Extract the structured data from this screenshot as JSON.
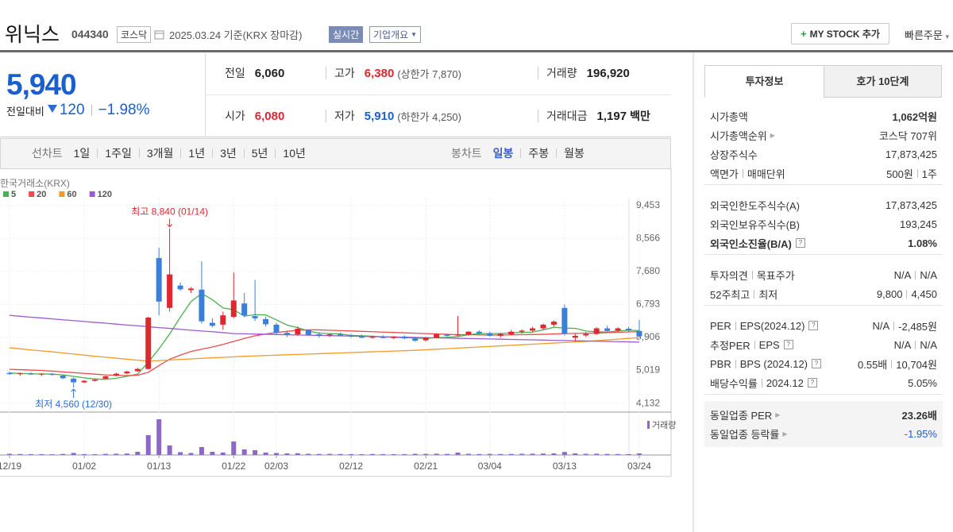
{
  "header": {
    "name": "위닉스",
    "code": "044340",
    "market": "코스닥",
    "date": "2025.03.24 기준(KRX 장마감)",
    "realtime": "실시간",
    "overview": "기업개요",
    "my_stock": "MY STOCK 추가",
    "quick_order": "빠른주문"
  },
  "quote": {
    "price": "5,940",
    "change_label": "전일대비",
    "change": "120",
    "rate": "−1.98%",
    "rows": [
      [
        {
          "label": "전일",
          "value": "6,060"
        },
        {
          "label": "고가",
          "value": "6,380",
          "sub": "(상한가 7,870)",
          "tone": "up"
        },
        {
          "label": "거래량",
          "value": "196,920"
        }
      ],
      [
        {
          "label": "시가",
          "value": "6,080",
          "tone": "up"
        },
        {
          "label": "저가",
          "value": "5,910",
          "sub": "(하한가 4,250)",
          "tone": "down"
        },
        {
          "label": "거래대금",
          "value": "1,197",
          "unit": "백만"
        }
      ]
    ]
  },
  "periods": {
    "line_label": "선차트",
    "line": [
      "1일",
      "1주일",
      "3개월",
      "1년",
      "3년",
      "5년",
      "10년"
    ],
    "candle_label": "봉차트",
    "candle": [
      "일봉",
      "주봉",
      "월봉"
    ],
    "selected": 0
  },
  "chart_data": {
    "type": "candlestick",
    "source": "한국거래소(KRX)",
    "up_color": "#e0262e",
    "down_color": "#3b7fd9",
    "categories": [
      "12/19",
      null,
      null,
      null,
      null,
      null,
      null,
      "01/02",
      null,
      null,
      null,
      null,
      null,
      null,
      "01/13",
      null,
      null,
      null,
      null,
      null,
      null,
      "01/22",
      null,
      null,
      null,
      "02/03",
      null,
      null,
      null,
      null,
      null,
      null,
      "02/12",
      null,
      null,
      null,
      null,
      null,
      null,
      "02/21",
      null,
      null,
      null,
      null,
      null,
      "03/04",
      null,
      null,
      null,
      null,
      null,
      null,
      "03/13",
      null,
      null,
      null,
      null,
      null,
      null,
      "03/24"
    ],
    "open": [
      4950,
      4920,
      4940,
      4910,
      4930,
      4880,
      4800,
      4700,
      4740,
      4800,
      4880,
      4940,
      5000,
      5060,
      8040,
      6700,
      7300,
      7180,
      7190,
      6300,
      6250,
      6460,
      6820,
      6480,
      6400,
      6250,
      6030,
      5990,
      6100,
      5990,
      5960,
      5990,
      5960,
      5930,
      5900,
      5920,
      5890,
      5930,
      5880,
      5830,
      5900,
      5980,
      5960,
      5990,
      6060,
      6020,
      5950,
      5990,
      6060,
      6090,
      6150,
      6250,
      6700,
      5900,
      5960,
      6000,
      6150,
      6090,
      6140,
      6080
    ],
    "high": [
      4990,
      4960,
      4970,
      4950,
      4950,
      4900,
      4830,
      4760,
      4790,
      4880,
      4960,
      5010,
      5090,
      6460,
      8320,
      8840,
      7380,
      7260,
      7950,
      6420,
      6600,
      7650,
      7100,
      7450,
      6460,
      6300,
      6090,
      6200,
      6120,
      6050,
      6010,
      6040,
      6000,
      5980,
      5950,
      5960,
      5940,
      5960,
      5920,
      5920,
      6020,
      6010,
      6480,
      6080,
      6100,
      6060,
      6030,
      6110,
      6120,
      6190,
      6280,
      6360,
      6790,
      6000,
      6050,
      6180,
      6220,
      6180,
      6190,
      6380
    ],
    "low": [
      4900,
      4880,
      4900,
      4870,
      4880,
      4790,
      4560,
      4680,
      4720,
      4780,
      4860,
      4920,
      4980,
      5040,
      6500,
      6600,
      7160,
      7100,
      6280,
      6180,
      6120,
      6420,
      6450,
      6350,
      6200,
      5980,
      5920,
      5950,
      5960,
      5900,
      5920,
      5940,
      5900,
      5880,
      5870,
      5880,
      5860,
      5860,
      5790,
      5800,
      5890,
      5930,
      5930,
      5950,
      5980,
      5930,
      5900,
      5960,
      6010,
      6060,
      6120,
      6200,
      5960,
      5800,
      5920,
      5980,
      6060,
      6050,
      6070,
      5910
    ],
    "close": [
      4920,
      4940,
      4910,
      4930,
      4900,
      4810,
      4700,
      4740,
      4770,
      4860,
      4930,
      4990,
      5060,
      6440,
      6870,
      7600,
      7200,
      7220,
      6340,
      6220,
      6500,
      6900,
      6500,
      6420,
      6260,
      6030,
      5980,
      6140,
      5980,
      5950,
      5990,
      5960,
      5930,
      5900,
      5920,
      5890,
      5930,
      5880,
      5820,
      5900,
      5990,
      5950,
      5990,
      6060,
      6020,
      5950,
      6000,
      6060,
      6090,
      6150,
      6250,
      6330,
      6000,
      5950,
      6000,
      6150,
      6080,
      6150,
      6100,
      5940
    ],
    "volume": [
      150000,
      120000,
      110000,
      100000,
      90000,
      130000,
      260000,
      110000,
      100000,
      140000,
      160000,
      180000,
      400000,
      2500000,
      4500000,
      1200000,
      350000,
      250000,
      1000000,
      400000,
      300000,
      1700000,
      700000,
      600000,
      300000,
      250000,
      200000,
      220000,
      150000,
      130000,
      140000,
      120000,
      110000,
      100000,
      120000,
      110000,
      100000,
      110000,
      150000,
      140000,
      160000,
      130000,
      300000,
      150000,
      120000,
      140000,
      120000,
      130000,
      150000,
      160000,
      180000,
      200000,
      380000,
      200000,
      150000,
      160000,
      130000,
      120000,
      110000,
      196920
    ],
    "volume_label": "거래량",
    "volume_color": "#8d68c8",
    "volume_lim": [
      0,
      5000000
    ],
    "series": [
      {
        "name": "5",
        "color": "#4caf50",
        "values": [
          4950,
          4940,
          4930,
          4925,
          4920,
          4900,
          4860,
          4820,
          4790,
          4780,
          4810,
          4860,
          4920,
          5240,
          5600,
          6000,
          6450,
          6870,
          7090,
          6920,
          6700,
          6650,
          6480,
          6520,
          6510,
          6380,
          6240,
          6170,
          6080,
          6020,
          6010,
          6000,
          5960,
          5950,
          5940,
          5920,
          5910,
          5900,
          5890,
          5880,
          5900,
          5910,
          5930,
          5980,
          6010,
          6010,
          6010,
          6030,
          6040,
          6050,
          6110,
          6180,
          6160,
          6150,
          6080,
          6060,
          6050,
          6080,
          6100,
          6090
        ]
      },
      {
        "name": "20",
        "color": "#ec4c4c",
        "values": [
          5050,
          5040,
          5030,
          5020,
          5000,
          4980,
          4960,
          4940,
          4920,
          4900,
          4890,
          4880,
          4890,
          4970,
          5150,
          5320,
          5430,
          5530,
          5590,
          5650,
          5720,
          5800,
          5880,
          5950,
          6000,
          6040,
          6070,
          6100,
          6110,
          6110,
          6100,
          6090,
          6080,
          6070,
          6060,
          6050,
          6040,
          6030,
          6020,
          6010,
          6000,
          5990,
          5980,
          5980,
          5975,
          5970,
          5970,
          5975,
          5980,
          5985,
          5990,
          6000,
          6010,
          6015,
          6020,
          6025,
          6035,
          6045,
          6055,
          6060
        ]
      },
      {
        "name": "60",
        "color": "#f39a2c",
        "values": [
          5630,
          5600,
          5570,
          5545,
          5520,
          5490,
          5460,
          5430,
          5400,
          5375,
          5350,
          5320,
          5295,
          5270,
          5285,
          5300,
          5315,
          5330,
          5345,
          5360,
          5370,
          5385,
          5400,
          5410,
          5420,
          5430,
          5440,
          5450,
          5460,
          5470,
          5480,
          5490,
          5500,
          5510,
          5520,
          5530,
          5540,
          5550,
          5560,
          5575,
          5590,
          5605,
          5620,
          5635,
          5650,
          5665,
          5680,
          5695,
          5710,
          5725,
          5740,
          5755,
          5770,
          5785,
          5800,
          5820,
          5840,
          5860,
          5880,
          5900
        ]
      },
      {
        "name": "120",
        "color": "#9b5ad2",
        "values": [
          6500,
          6475,
          6450,
          6430,
          6405,
          6380,
          6360,
          6335,
          6310,
          6290,
          6265,
          6240,
          6220,
          6195,
          6170,
          6150,
          6125,
          6100,
          6080,
          6060,
          6035,
          6010,
          6005,
          5998,
          5992,
          5985,
          5979,
          5973,
          5967,
          5961,
          5955,
          5949,
          5943,
          5937,
          5931,
          5925,
          5919,
          5913,
          5907,
          5901,
          5895,
          5889,
          5883,
          5877,
          5871,
          5865,
          5859,
          5853,
          5847,
          5841,
          5835,
          5829,
          5823,
          5817,
          5811,
          5805,
          5799,
          5793,
          5787,
          5781
        ]
      }
    ],
    "ylim": [
      3900,
      9640
    ],
    "yticks": [
      {
        "value": 9453,
        "label": "9,453"
      },
      {
        "value": 8566,
        "label": "8,566"
      },
      {
        "value": 7680,
        "label": "7,680"
      },
      {
        "value": 6793,
        "label": "6,793"
      },
      {
        "value": 5906,
        "label": "5,906"
      },
      {
        "value": 5019,
        "label": "5,019"
      },
      {
        "value": 4132,
        "label": "4,132"
      }
    ],
    "grid": true,
    "high_label": "최고 8,840 (01/14)",
    "low_label": "최저 4,560 (12/30)"
  },
  "sidebar": {
    "tabs": [
      "투자정보",
      "호가 10단계"
    ],
    "groups": [
      {
        "rows": [
          {
            "label": [
              "시가총액"
            ],
            "value": [
              "1,062억원"
            ],
            "strong": true
          },
          {
            "label": [
              "시가총액순위"
            ],
            "link": true,
            "value": [
              "코스닥 707위"
            ]
          },
          {
            "label": [
              "상장주식수"
            ],
            "value": [
              "17,873,425"
            ]
          },
          {
            "label": [
              "액면가",
              "매매단위"
            ],
            "value": [
              "500원",
              "1주"
            ]
          }
        ]
      },
      {
        "rows": [
          {
            "label": [
              "외국인한도주식수(A)"
            ],
            "value": [
              "17,873,425"
            ]
          },
          {
            "label": [
              "외국인보유주식수(B)"
            ],
            "value": [
              "193,245"
            ]
          },
          {
            "label": [
              "외국인소진율(B/A)"
            ],
            "help": true,
            "value": [
              "1.08%"
            ],
            "strong": true,
            "strong_label": true
          }
        ]
      },
      {
        "rows": [
          {
            "label": [
              "투자의견",
              "목표주가"
            ],
            "value": [
              "N/A",
              "N/A"
            ]
          },
          {
            "label": [
              "52주최고",
              "최저"
            ],
            "value": [
              "9,800",
              "4,450"
            ]
          }
        ]
      },
      {
        "rows": [
          {
            "label": [
              "PER",
              "EPS(2024.12)"
            ],
            "help": true,
            "value": [
              "N/A",
              "-2,485원"
            ]
          },
          {
            "label": [
              "추정PER",
              "EPS"
            ],
            "help": true,
            "value": [
              "N/A",
              "N/A"
            ]
          },
          {
            "label": [
              "PBR",
              "BPS (2024.12)"
            ],
            "help": true,
            "value": [
              "0.55배",
              "10,704원"
            ]
          },
          {
            "label": [
              "배당수익률",
              "2024.12"
            ],
            "help": true,
            "value": [
              "5.05%"
            ]
          }
        ]
      },
      {
        "shaded": true,
        "rows": [
          {
            "label": [
              "동일업종 PER"
            ],
            "link": true,
            "value": [
              "23.26배"
            ],
            "strong": true
          },
          {
            "label": [
              "동일업종 등락률"
            ],
            "link": true,
            "value": [
              "-1.95%"
            ],
            "tone": "down"
          }
        ]
      }
    ]
  }
}
